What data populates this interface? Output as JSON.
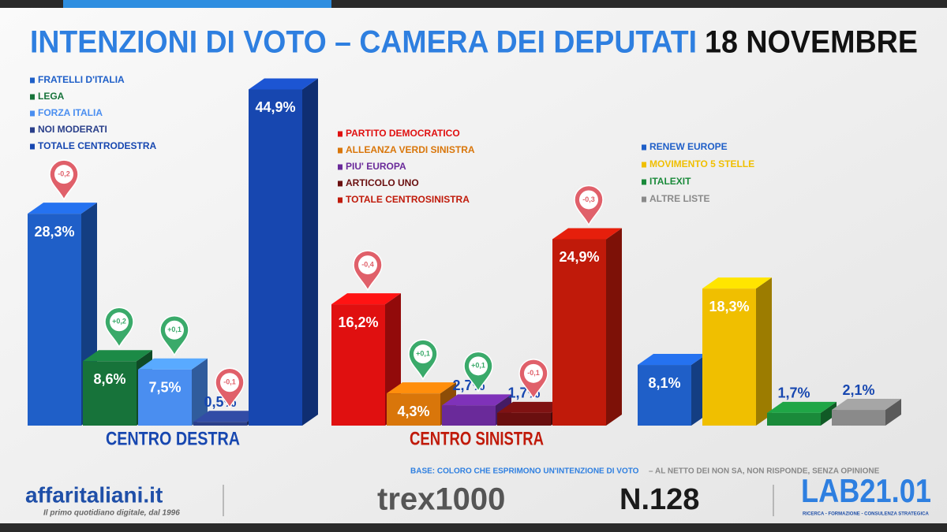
{
  "chart_data": {
    "type": "bar",
    "title": "INTENZIONI DI VOTO – CAMERA DEI DEPUTATI",
    "subtitle": "18 NOVEMBRE",
    "groups": [
      {
        "name": "CENTRO DESTRA",
        "categories": [
          "FRATELLI D'ITALIA",
          "LEGA",
          "FORZA ITALIA",
          "NOI MODERATI",
          "TOTALE CENTRODESTRA"
        ],
        "colors": [
          "#1f5fc8",
          "#17733a",
          "#4a8ef0",
          "#2a3f8a",
          "#1747b0"
        ],
        "values": [
          28.3,
          8.6,
          7.5,
          0.5,
          44.9
        ],
        "value_labels": [
          "28,3%",
          "8,6%",
          "7,5%",
          "0,5%",
          "44,9%"
        ],
        "changes": [
          -0.2,
          0.2,
          0.1,
          -0.1,
          null
        ],
        "change_labels": [
          "-0,2",
          "+0,2",
          "+0,1",
          "-0,1",
          null
        ]
      },
      {
        "name": "CENTRO SINISTRA",
        "categories": [
          "PARTITO DEMOCRATICO",
          "ALLEANZA VERDI SINISTRA",
          "PIU' EUROPA",
          "ARTICOLO UNO",
          "TOTALE CENTROSINISTRA"
        ],
        "colors": [
          "#e01010",
          "#d9760a",
          "#6a2a9a",
          "#6a0f0f",
          "#c01a0a"
        ],
        "values": [
          16.2,
          4.3,
          2.7,
          1.7,
          24.9
        ],
        "value_labels": [
          "16,2%",
          "4,3%",
          "2,7%",
          "1,7%",
          "24,9%"
        ],
        "changes": [
          -0.4,
          0.1,
          0.1,
          -0.1,
          -0.3
        ],
        "change_labels": [
          "-0,4",
          "+0,1",
          "+0,1",
          "-0,1",
          "-0,3"
        ]
      },
      {
        "categories": [
          "RENEW EUROPE",
          "MOVIMENTO 5 STELLE",
          "ITALEXIT",
          "ALTRE LISTE"
        ],
        "colors": [
          "#1f5fc8",
          "#f0bf00",
          "#1a8a3a",
          "#8a8a8a"
        ],
        "values": [
          8.1,
          18.3,
          1.7,
          2.1
        ],
        "value_labels": [
          "8,1%",
          "18,3%",
          "1,7%",
          "2,1%"
        ]
      }
    ],
    "footer": {
      "base": "BASE: COLORO CHE ESPRIMONO UN'INTENZIONE DI VOTO",
      "base_note": "– AL NETTO DEI NON SA, NON RISPONDE, SENZA OPINIONE",
      "brand": "affaritaliani.it",
      "brand_tagline": "Il primo quotidiano digitale, dal 1996",
      "panel": "trex1000",
      "issue": "N.128",
      "lab": "LAB21.01",
      "lab_tagline": "RICERCA - FORMAZIONE - CONSULENZA STRATEGICA"
    }
  }
}
